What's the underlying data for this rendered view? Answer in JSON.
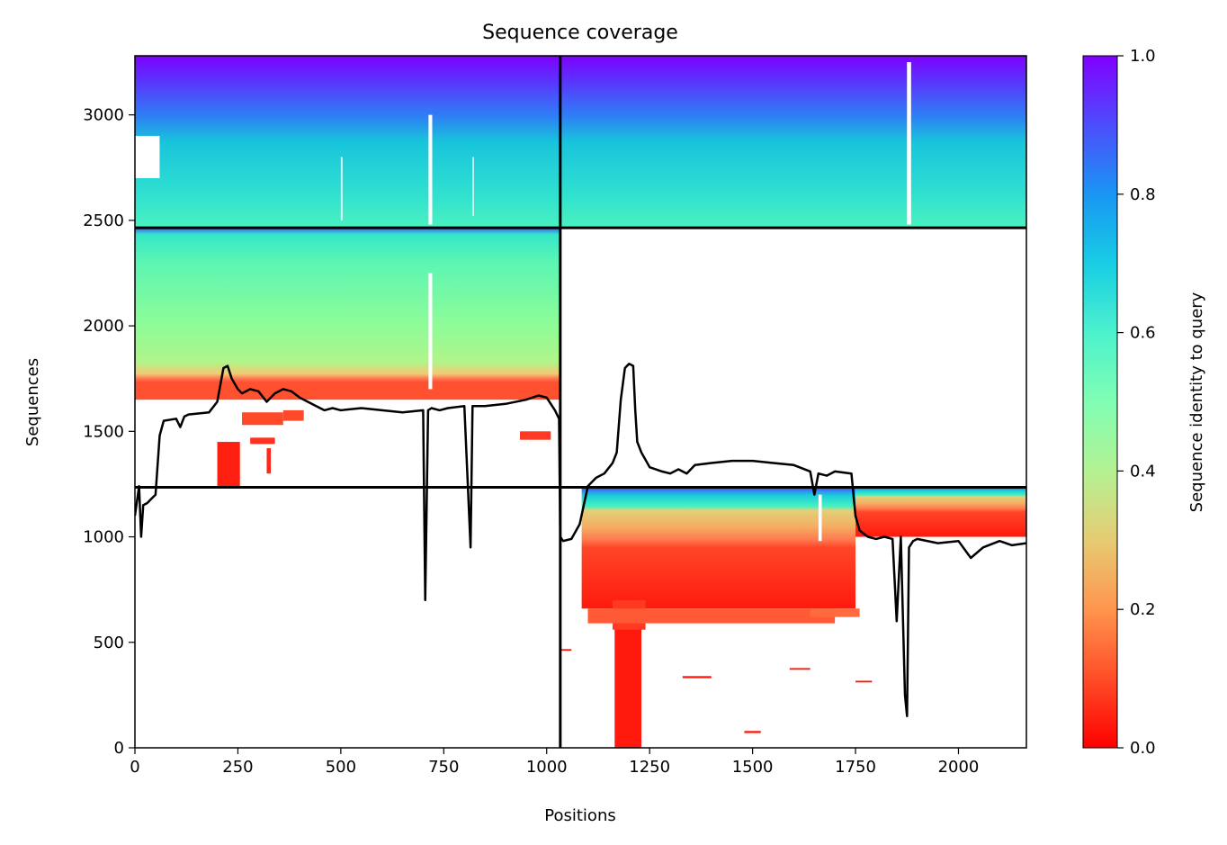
{
  "chart_data": {
    "type": "heatmap",
    "title": "Sequence coverage",
    "xlabel": "Positions",
    "ylabel": "Sequences",
    "xlim": [
      0,
      2165
    ],
    "ylim": [
      0,
      3280
    ],
    "xticks": [
      0,
      250,
      500,
      750,
      1000,
      1250,
      1500,
      1750,
      2000
    ],
    "yticks": [
      0,
      500,
      1000,
      1500,
      2000,
      2500,
      3000
    ],
    "colorbar": {
      "label": "Sequence identity to query",
      "range": [
        0,
        1
      ],
      "ticks": [
        "0.0",
        "0.2",
        "0.4",
        "0.6",
        "0.8",
        "1.0"
      ],
      "colormap": "rainbow_r"
    },
    "domain_boundaries": {
      "vertical_at_position": 1033,
      "horizontal_at_sequences": [
        1235,
        2465
      ]
    },
    "coverage_line": {
      "x": [
        0,
        10,
        15,
        20,
        30,
        40,
        50,
        60,
        70,
        100,
        110,
        120,
        130,
        180,
        200,
        215,
        225,
        235,
        250,
        260,
        280,
        300,
        320,
        340,
        360,
        380,
        400,
        420,
        440,
        460,
        480,
        500,
        550,
        600,
        650,
        700,
        705,
        712,
        720,
        740,
        760,
        800,
        815,
        820,
        850,
        900,
        950,
        980,
        1000,
        1020,
        1030,
        1033,
        1040,
        1060,
        1080,
        1100,
        1120,
        1140,
        1160,
        1170,
        1180,
        1190,
        1200,
        1210,
        1215,
        1220,
        1230,
        1250,
        1280,
        1300,
        1320,
        1340,
        1360,
        1400,
        1450,
        1500,
        1550,
        1600,
        1640,
        1650,
        1660,
        1680,
        1700,
        1740,
        1750,
        1760,
        1780,
        1800,
        1820,
        1840,
        1850,
        1860,
        1870,
        1875,
        1880,
        1890,
        1900,
        1950,
        2000,
        2030,
        2060,
        2100,
        2130,
        2165
      ],
      "y": [
        1100,
        1240,
        1000,
        1150,
        1160,
        1180,
        1200,
        1480,
        1550,
        1560,
        1520,
        1570,
        1580,
        1590,
        1640,
        1800,
        1810,
        1750,
        1700,
        1680,
        1700,
        1690,
        1640,
        1680,
        1700,
        1690,
        1660,
        1640,
        1620,
        1600,
        1610,
        1600,
        1610,
        1600,
        1590,
        1600,
        700,
        1600,
        1610,
        1600,
        1610,
        1620,
        950,
        1620,
        1620,
        1630,
        1650,
        1670,
        1660,
        1600,
        1560,
        1000,
        980,
        990,
        1060,
        1240,
        1280,
        1300,
        1350,
        1400,
        1650,
        1800,
        1820,
        1810,
        1600,
        1450,
        1400,
        1330,
        1310,
        1300,
        1320,
        1300,
        1340,
        1350,
        1360,
        1360,
        1350,
        1340,
        1310,
        1200,
        1300,
        1290,
        1310,
        1300,
        1100,
        1030,
        1000,
        990,
        1000,
        990,
        600,
        1000,
        250,
        150,
        950,
        980,
        990,
        970,
        980,
        900,
        950,
        980,
        960,
        970
      ]
    }
  }
}
